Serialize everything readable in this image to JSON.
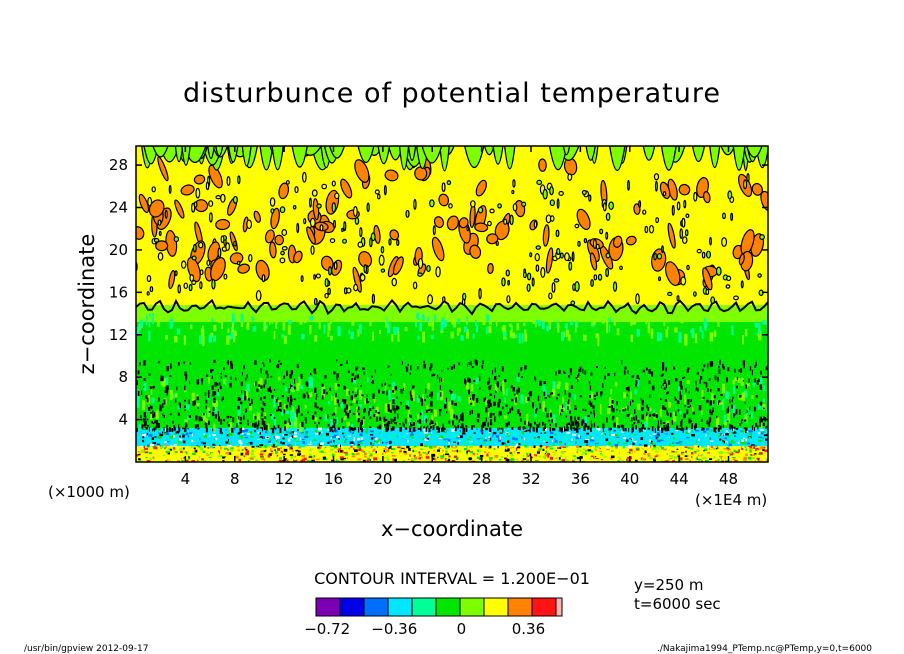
{
  "chart_data": {
    "type": "heatmap",
    "title": "disturbunce of potential temperature",
    "xlabel": "x−coordinate",
    "ylabel": "z−coordinate",
    "x_ticks": [
      "4",
      "8",
      "12",
      "16",
      "20",
      "24",
      "28",
      "32",
      "36",
      "40",
      "44",
      "48"
    ],
    "x_tick_values": [
      4,
      8,
      12,
      16,
      20,
      24,
      28,
      32,
      36,
      40,
      44,
      48
    ],
    "y_ticks": [
      "4",
      "8",
      "12",
      "16",
      "20",
      "24",
      "28"
    ],
    "y_tick_values": [
      4,
      8,
      12,
      16,
      20,
      24,
      28
    ],
    "xlim": [
      0,
      51.2
    ],
    "ylim": [
      0,
      29.8
    ],
    "x_unit_label": "(×1E4 m)",
    "y_unit_label": "(×1000 m)",
    "contour_interval": "CONTOUR INTERVAL = 1.200E−01",
    "colorbar": {
      "colors": [
        "#7b00b4",
        "#0000e6",
        "#006eff",
        "#00e6ff",
        "#00ff96",
        "#00e600",
        "#7dff00",
        "#ffff00",
        "#ff8200",
        "#ff1414",
        "#ffb4b4"
      ],
      "tick_labels": [
        "−0.72",
        "−0.36",
        "0",
        "0.36"
      ],
      "tick_values": [
        -0.72,
        -0.36,
        0,
        0.36
      ],
      "range": [
        -0.78,
        0.54
      ]
    },
    "annotations": {
      "y_position": "y=250 m",
      "time": "t=6000 sec"
    },
    "footer_left": "/usr/bin/gpview  2012-09-17",
    "footer_right": "./Nakajima1994_PTemp.nc@PTemp,y=0,t=6000",
    "layers": [
      {
        "z_range": [
          0,
          1.5
        ],
        "description": "noisy mix",
        "dominant": "#ffff00"
      },
      {
        "z_range": [
          1.5,
          3.2
        ],
        "dominant": "#00e6ff"
      },
      {
        "z_range": [
          3.2,
          13.2
        ],
        "dominant": "#00e600"
      },
      {
        "z_range": [
          13.2,
          14.8
        ],
        "dominant": "#7dff00"
      },
      {
        "z_range": [
          14.8,
          29.8
        ],
        "dominant": "#ffff00"
      }
    ]
  }
}
